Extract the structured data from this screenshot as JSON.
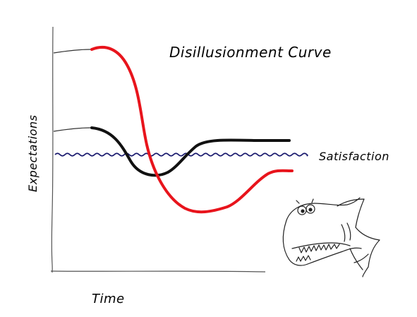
{
  "title": "Disillusionment Curve",
  "axes": {
    "ylabel": "Expectations",
    "xlabel": "Time"
  },
  "satisfaction_label": "Satisfaction",
  "colors": {
    "red_curve": "#e8141c",
    "black_curve": "#111111",
    "satisfaction_line": "#1a1a6e",
    "axis": "#555555"
  },
  "illustration": {
    "icon": "cartoon-shark-icon"
  }
}
